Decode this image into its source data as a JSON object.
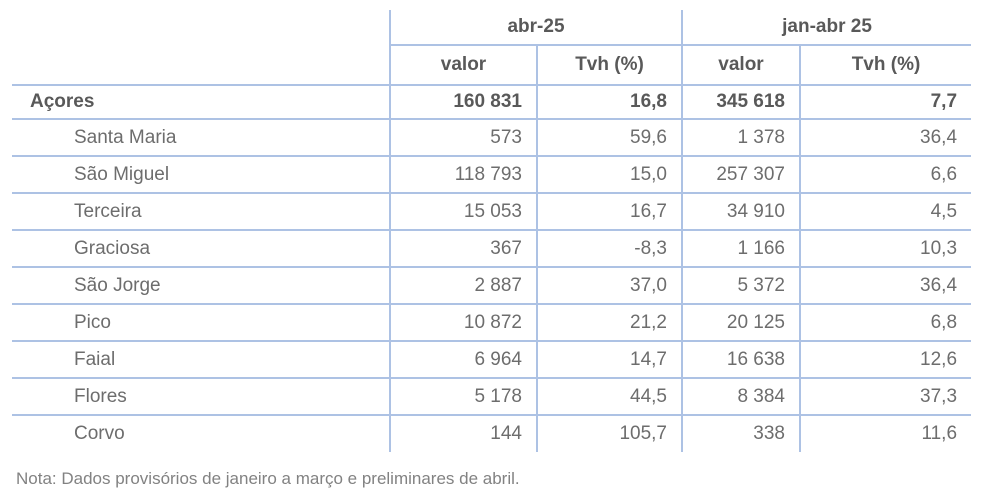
{
  "table": {
    "column_groups": [
      {
        "label": "abr-25"
      },
      {
        "label": "jan-abr 25"
      }
    ],
    "sub_headers": {
      "valor_1": "valor",
      "tvh_1": "Tvh (%)",
      "valor_2": "valor",
      "tvh_2": "Tvh (%)"
    },
    "total_row": {
      "label": "Açores",
      "values": [
        "160 831",
        "16,8",
        "345 618",
        "7,7"
      ]
    },
    "rows": [
      {
        "label": "Santa Maria",
        "values": [
          "573",
          "59,6",
          "1 378",
          "36,4"
        ]
      },
      {
        "label": "São Miguel",
        "values": [
          "118 793",
          "15,0",
          "257 307",
          "6,6"
        ]
      },
      {
        "label": "Terceira",
        "values": [
          "15 053",
          "16,7",
          "34 910",
          "4,5"
        ]
      },
      {
        "label": "Graciosa",
        "values": [
          "367",
          "-8,3",
          "1 166",
          "10,3"
        ]
      },
      {
        "label": "São Jorge",
        "values": [
          "2 887",
          "37,0",
          "5 372",
          "36,4"
        ]
      },
      {
        "label": "Pico",
        "values": [
          "10 872",
          "21,2",
          "20 125",
          "6,8"
        ]
      },
      {
        "label": "Faial",
        "values": [
          "6 964",
          "14,7",
          "16 638",
          "12,6"
        ]
      },
      {
        "label": "Flores",
        "values": [
          "5 178",
          "44,5",
          "8 384",
          "37,3"
        ]
      },
      {
        "label": "Corvo",
        "values": [
          "144",
          "105,7",
          "338",
          "11,6"
        ]
      }
    ],
    "note": "Nota: Dados provisórios de janeiro a março e preliminares de abril.",
    "colors": {
      "border": "#ADC2E4",
      "header_text": "#595959",
      "cell_text": "#6D6D6D",
      "note_text": "#828282"
    }
  }
}
